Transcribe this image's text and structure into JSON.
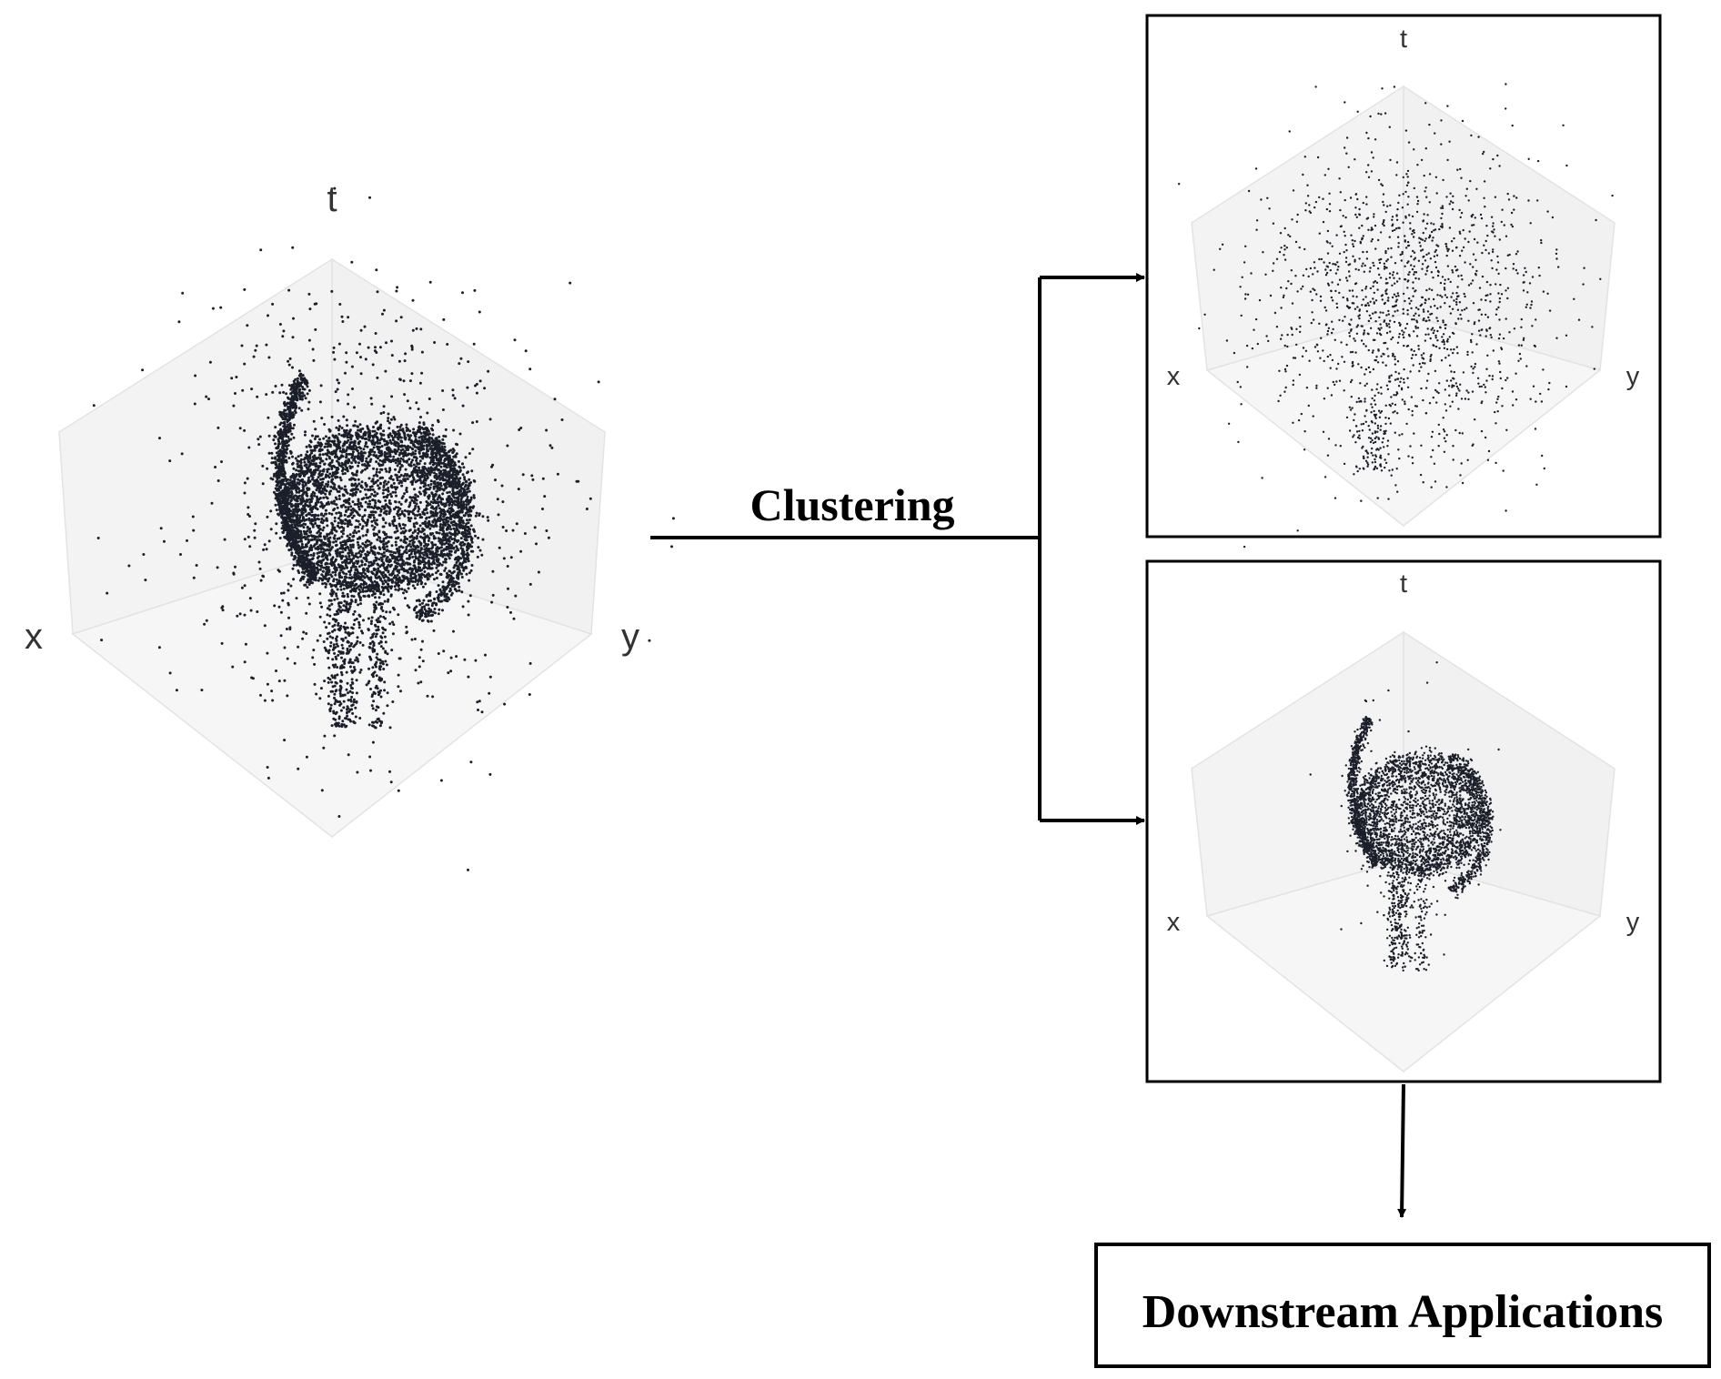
{
  "input_plot": {
    "axis_labels": {
      "t": "t",
      "x": "x",
      "y": "y"
    }
  },
  "clustering_label": "Clustering",
  "cluster_plots": [
    {
      "axis_labels": {
        "t": "t",
        "x": "x",
        "y": "y"
      },
      "content": "noise"
    },
    {
      "axis_labels": {
        "t": "t",
        "x": "x",
        "y": "y"
      },
      "content": "galaxy"
    }
  ],
  "downstream_label": "Downstream Applications",
  "colors": {
    "cube_face": "#f3f3f3",
    "cube_edge": "#dddddd",
    "point": "#1b1f2a",
    "line": "#000000"
  }
}
